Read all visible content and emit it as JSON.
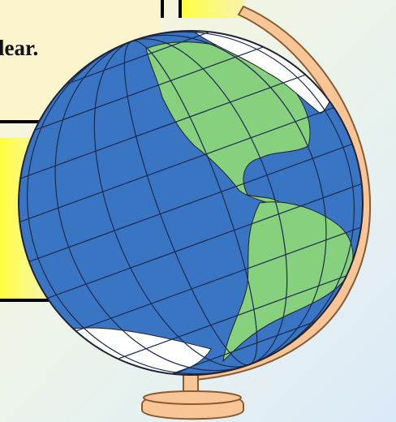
{
  "text": {
    "fragment": "lear."
  }
}
